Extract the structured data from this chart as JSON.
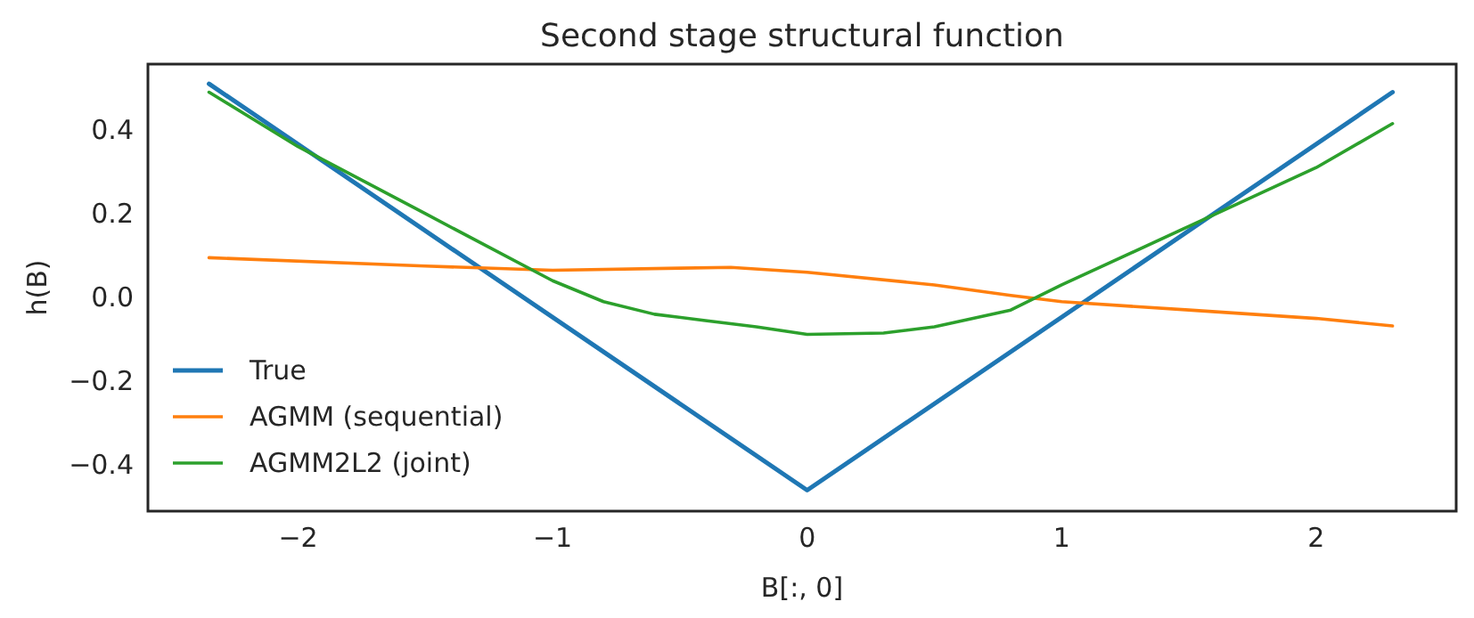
{
  "chart_data": {
    "type": "line",
    "title": "Second stage structural function",
    "xlabel": "B[:, 0]",
    "ylabel": "h(B)",
    "xlim": [
      -2.59,
      2.55
    ],
    "ylim": [
      -0.51,
      0.557
    ],
    "xticks": [
      {
        "value": -2,
        "label": "−2"
      },
      {
        "value": -1,
        "label": "−1"
      },
      0,
      1,
      2
    ],
    "yticks": [
      {
        "value": -0.4,
        "label": "−0.4"
      },
      {
        "value": -0.2,
        "label": "−0.2"
      },
      {
        "value": 0,
        "label": "0.0"
      },
      0.2,
      0.4
    ],
    "grid": false,
    "legend": "bottom left",
    "line_style": "solid",
    "marker": "none",
    "series": [
      {
        "name": "True",
        "color": "#1f77b4",
        "x": [
          -2.35,
          0,
          2.3
        ],
        "values": [
          0.51,
          -0.46,
          0.49
        ]
      },
      {
        "name": "AGMM (sequential)",
        "color": "#ff7f0e",
        "x": [
          -2.35,
          -1.5,
          -1,
          -0.5,
          -0.3,
          0,
          0.5,
          0.8,
          1,
          1.5,
          2,
          2.3
        ],
        "values": [
          0.095,
          0.075,
          0.065,
          0.07,
          0.072,
          0.06,
          0.03,
          0.005,
          -0.01,
          -0.03,
          -0.05,
          -0.068
        ]
      },
      {
        "name": "AGMM2L2 (joint)",
        "color": "#2ca02c",
        "x": [
          -2.35,
          -2,
          -1.5,
          -1,
          -0.8,
          -0.6,
          -0.4,
          -0.2,
          0,
          0.3,
          0.5,
          0.8,
          1,
          1.5,
          2,
          2.3
        ],
        "values": [
          0.49,
          0.36,
          0.2,
          0.04,
          -0.01,
          -0.04,
          -0.055,
          -0.07,
          -0.088,
          -0.085,
          -0.07,
          -0.03,
          0.03,
          0.17,
          0.31,
          0.415
        ]
      }
    ]
  }
}
